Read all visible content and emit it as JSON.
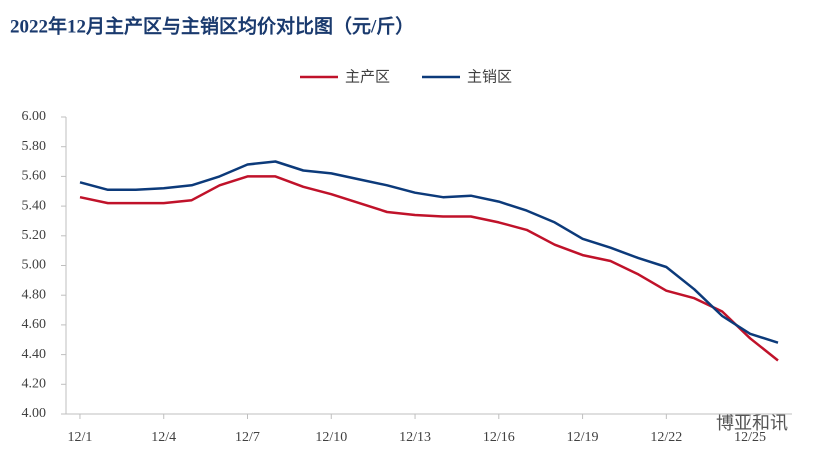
{
  "chart_data": {
    "type": "line",
    "title": "2022年12月主产区与主销区均价对比图（元/斤）",
    "categories": [
      "12/1",
      null,
      null,
      "12/4",
      null,
      null,
      "12/7",
      null,
      null,
      "12/10",
      null,
      null,
      "12/13",
      null,
      null,
      "12/16",
      null,
      null,
      "12/19",
      null,
      null,
      "12/22",
      null,
      null,
      "12/25",
      null
    ],
    "series": [
      {
        "name": "主产区",
        "color": "#c0122a",
        "values": [
          5.46,
          5.42,
          5.42,
          5.42,
          5.44,
          5.54,
          5.6,
          5.6,
          5.53,
          5.48,
          5.42,
          5.36,
          5.34,
          5.33,
          5.33,
          5.29,
          5.24,
          5.14,
          5.07,
          5.03,
          4.94,
          4.83,
          4.78,
          4.69,
          4.51,
          4.36
        ]
      },
      {
        "name": "主销区",
        "color": "#0c3a7a",
        "values": [
          5.56,
          5.51,
          5.51,
          5.52,
          5.54,
          5.6,
          5.68,
          5.7,
          5.64,
          5.62,
          5.58,
          5.54,
          5.49,
          5.46,
          5.47,
          5.43,
          5.37,
          5.29,
          5.18,
          5.12,
          5.05,
          4.99,
          4.84,
          4.66,
          4.54,
          4.48
        ]
      }
    ],
    "ylim": [
      4.0,
      6.0
    ],
    "yticks": [
      {
        "value": 4.0,
        "label": "4.00"
      },
      {
        "value": 4.2,
        "label": "4.20"
      },
      {
        "value": 4.4,
        "label": "4.40"
      },
      {
        "value": 4.6,
        "label": "4.60"
      },
      {
        "value": 4.8,
        "label": "4.80"
      },
      {
        "value": 5.0,
        "label": "5.00"
      },
      {
        "value": 5.2,
        "label": "5.20"
      },
      {
        "value": 5.4,
        "label": "5.40"
      },
      {
        "value": 5.6,
        "label": "5.60"
      },
      {
        "value": 5.8,
        "label": "5.80"
      },
      {
        "value": 6.0,
        "label": "6.00"
      }
    ],
    "grid": false,
    "legend": "top",
    "watermark": "博亚和讯"
  }
}
